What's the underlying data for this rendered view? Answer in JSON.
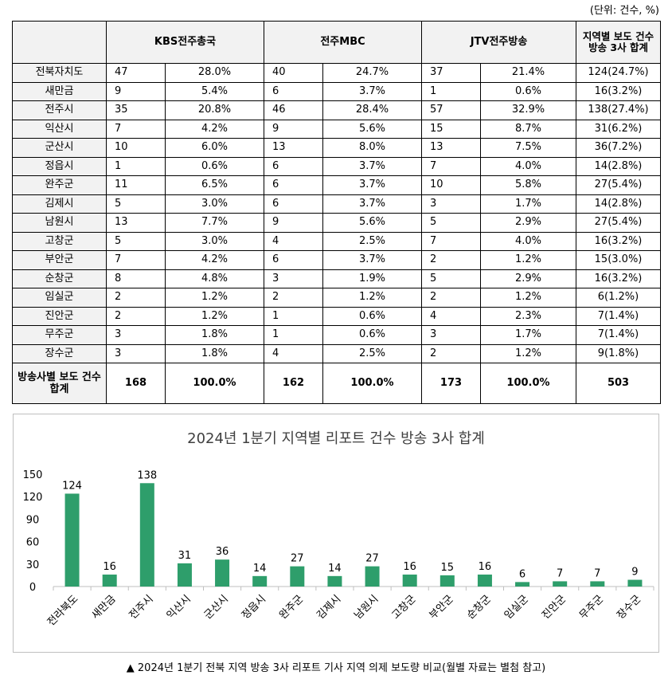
{
  "unit_note": "(단위: 건수, %)",
  "table": {
    "corner": "",
    "headers": [
      "KBS전주총국",
      "전주MBC",
      "JTV전주방송",
      "지역별 보도 건수 방송 3사 합계"
    ],
    "rows": [
      {
        "region": "전북자치도",
        "kbs": "47",
        "kbs_pct": "28.0%",
        "mbc": "40",
        "mbc_pct": "24.7%",
        "jtv": "37",
        "jtv_pct": "21.4%",
        "total": "124(24.7%)"
      },
      {
        "region": "새만금",
        "kbs": "9",
        "kbs_pct": "5.4%",
        "mbc": "6",
        "mbc_pct": "3.7%",
        "jtv": "1",
        "jtv_pct": "0.6%",
        "total": "16(3.2%)"
      },
      {
        "region": "전주시",
        "kbs": "35",
        "kbs_pct": "20.8%",
        "mbc": "46",
        "mbc_pct": "28.4%",
        "jtv": "57",
        "jtv_pct": "32.9%",
        "total": "138(27.4%)"
      },
      {
        "region": "익산시",
        "kbs": "7",
        "kbs_pct": "4.2%",
        "mbc": "9",
        "mbc_pct": "5.6%",
        "jtv": "15",
        "jtv_pct": "8.7%",
        "total": "31(6.2%)"
      },
      {
        "region": "군산시",
        "kbs": "10",
        "kbs_pct": "6.0%",
        "mbc": "13",
        "mbc_pct": "8.0%",
        "jtv": "13",
        "jtv_pct": "7.5%",
        "total": "36(7.2%)"
      },
      {
        "region": "정읍시",
        "kbs": "1",
        "kbs_pct": "0.6%",
        "mbc": "6",
        "mbc_pct": "3.7%",
        "jtv": "7",
        "jtv_pct": "4.0%",
        "total": "14(2.8%)"
      },
      {
        "region": "완주군",
        "kbs": "11",
        "kbs_pct": "6.5%",
        "mbc": "6",
        "mbc_pct": "3.7%",
        "jtv": "10",
        "jtv_pct": "5.8%",
        "total": "27(5.4%)"
      },
      {
        "region": "김제시",
        "kbs": "5",
        "kbs_pct": "3.0%",
        "mbc": "6",
        "mbc_pct": "3.7%",
        "jtv": "3",
        "jtv_pct": "1.7%",
        "total": "14(2.8%)"
      },
      {
        "region": "남원시",
        "kbs": "13",
        "kbs_pct": "7.7%",
        "mbc": "9",
        "mbc_pct": "5.6%",
        "jtv": "5",
        "jtv_pct": "2.9%",
        "total": "27(5.4%)"
      },
      {
        "region": "고창군",
        "kbs": "5",
        "kbs_pct": "3.0%",
        "mbc": "4",
        "mbc_pct": "2.5%",
        "jtv": "7",
        "jtv_pct": "4.0%",
        "total": "16(3.2%)"
      },
      {
        "region": "부안군",
        "kbs": "7",
        "kbs_pct": "4.2%",
        "mbc": "6",
        "mbc_pct": "3.7%",
        "jtv": "2",
        "jtv_pct": "1.2%",
        "total": "15(3.0%)"
      },
      {
        "region": "순창군",
        "kbs": "8",
        "kbs_pct": "4.8%",
        "mbc": "3",
        "mbc_pct": "1.9%",
        "jtv": "5",
        "jtv_pct": "2.9%",
        "total": "16(3.2%)"
      },
      {
        "region": "임실군",
        "kbs": "2",
        "kbs_pct": "1.2%",
        "mbc": "2",
        "mbc_pct": "1.2%",
        "jtv": "2",
        "jtv_pct": "1.2%",
        "total": "6(1.2%)"
      },
      {
        "region": "진안군",
        "kbs": "2",
        "kbs_pct": "1.2%",
        "mbc": "1",
        "mbc_pct": "0.6%",
        "jtv": "4",
        "jtv_pct": "2.3%",
        "total": "7(1.4%)"
      },
      {
        "region": "무주군",
        "kbs": "3",
        "kbs_pct": "1.8%",
        "mbc": "1",
        "mbc_pct": "0.6%",
        "jtv": "3",
        "jtv_pct": "1.7%",
        "total": "7(1.4%)"
      },
      {
        "region": "장수군",
        "kbs": "3",
        "kbs_pct": "1.8%",
        "mbc": "4",
        "mbc_pct": "2.5%",
        "jtv": "2",
        "jtv_pct": "1.2%",
        "total": "9(1.8%)"
      }
    ],
    "footer": {
      "region": "방송사별 보도 건수 합계",
      "kbs": "168",
      "kbs_pct": "100.0%",
      "mbc": "162",
      "mbc_pct": "100.0%",
      "jtv": "173",
      "jtv_pct": "100.0%",
      "total": "503"
    }
  },
  "chart_data": {
    "type": "bar",
    "title": "2024년 1분기 지역별 리포트 건수 방송 3사 합계",
    "categories": [
      "전라북도",
      "새만금",
      "전주시",
      "익산시",
      "군산시",
      "정읍시",
      "완주군",
      "김제시",
      "남원시",
      "고창군",
      "부안군",
      "순창군",
      "임실군",
      "진안군",
      "무주군",
      "장수군"
    ],
    "values": [
      124,
      16,
      138,
      31,
      36,
      14,
      27,
      14,
      27,
      16,
      15,
      16,
      6,
      7,
      7,
      9
    ],
    "yticks": [
      "0",
      "30",
      "60",
      "90",
      "120",
      "150"
    ],
    "ylim": [
      0,
      150
    ],
    "bar_color": "#2e9e6b",
    "grid": false,
    "legend": "none"
  },
  "caption": "▲ 2024년 1분기 전북 지역 방송 3사 리포트 기사 지역 의제 보도량 비교(월별 자료는 별첨 참고)"
}
